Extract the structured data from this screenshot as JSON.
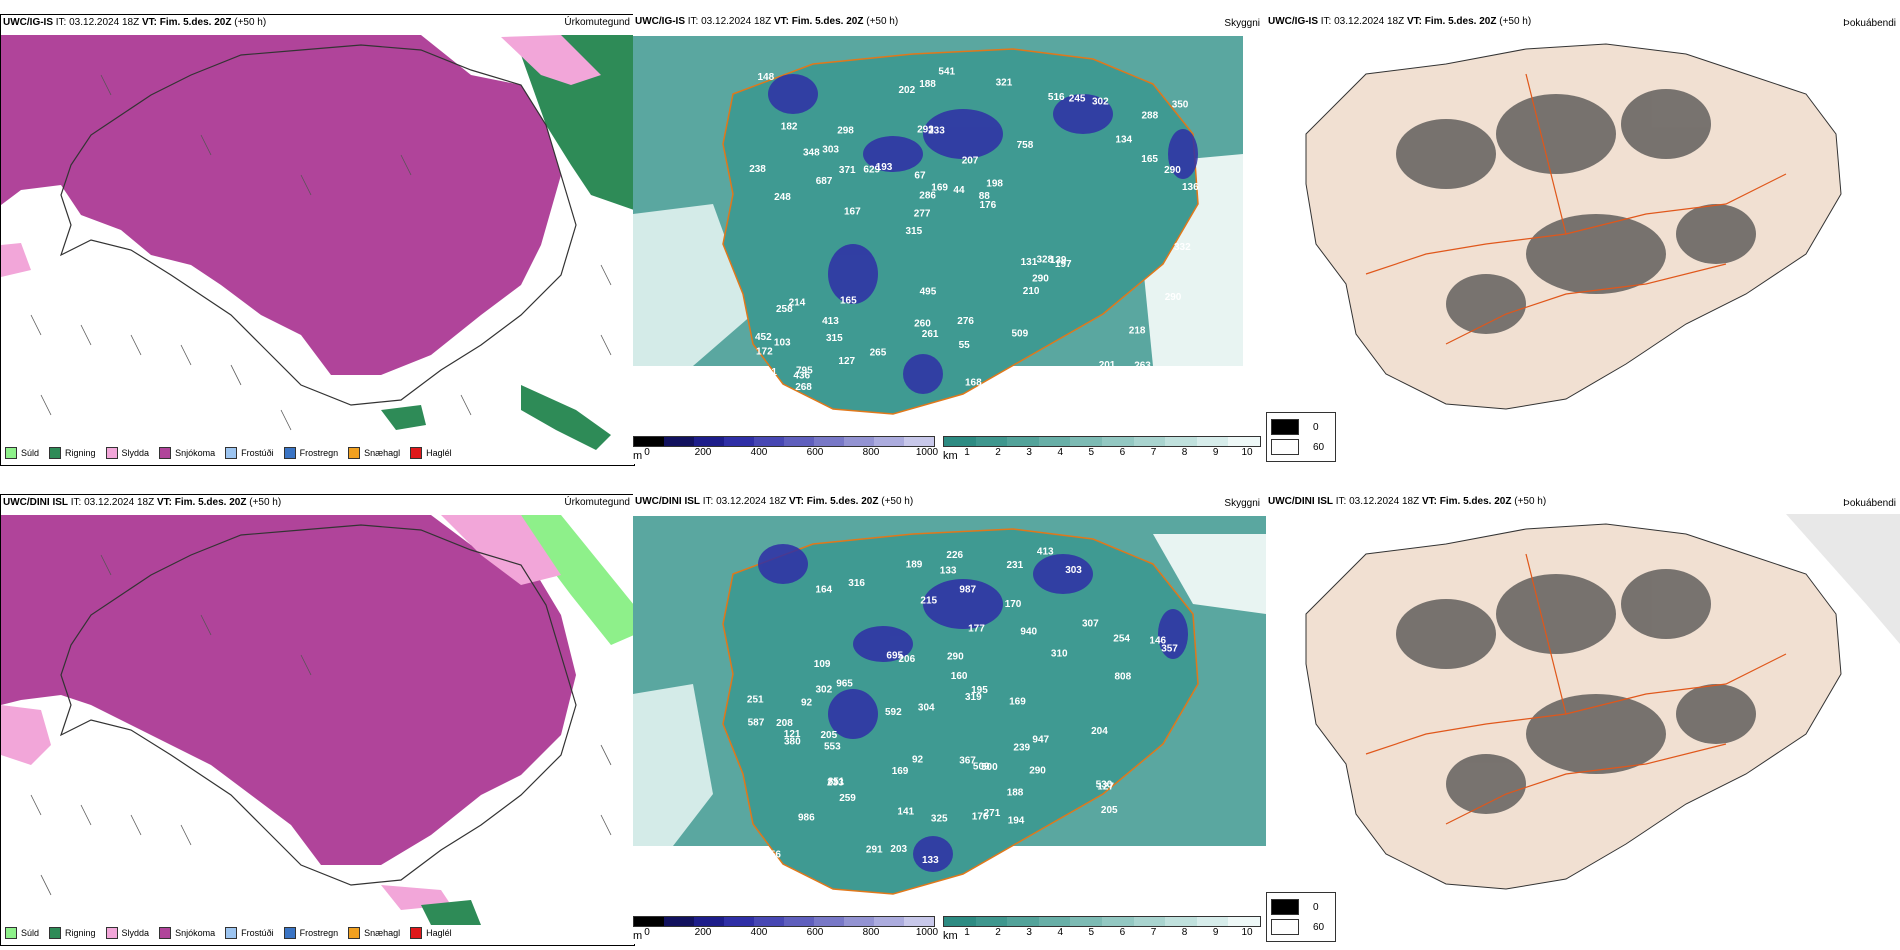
{
  "rows": [
    {
      "left": {
        "model": "UWC/IG-IS",
        "it_label": "IT:",
        "it_value": "03.12.2024 18Z",
        "vt_label": "VT:",
        "vt_value": "Fim. 5.des. 20Z",
        "lead": "(+50 h)",
        "product": "Úrkomutegund"
      },
      "middle": {
        "model": "UWC/IG-IS",
        "it_label": "IT:",
        "it_value": "03.12.2024 18Z",
        "vt_label": "VT:",
        "vt_value": "Fim. 5.des. 20Z",
        "lead": "(+50 h)",
        "product": "Skyggni",
        "labels": [
          "263",
          "248",
          "288",
          "315",
          "758",
          "795",
          "293",
          "207",
          "214",
          "193",
          "172",
          "315",
          "233",
          "198",
          "197",
          "182",
          "188",
          "136",
          "131",
          "165",
          "277",
          "260",
          "286",
          "298",
          "516",
          "165",
          "201",
          "218",
          "139",
          "168",
          "629",
          "687",
          "210",
          "127",
          "290",
          "88",
          "101",
          "261",
          "176",
          "258",
          "134",
          "350",
          "290",
          "509",
          "413",
          "268",
          "192",
          "276",
          "302",
          "541",
          "167",
          "238",
          "303",
          "245",
          "436",
          "321",
          "202",
          "169",
          "290",
          "495",
          "265",
          "328",
          "371",
          "452",
          "148",
          "348",
          "332",
          "67",
          "55",
          "44",
          "103"
        ]
      },
      "right": {
        "model": "UWC/IG-IS",
        "it_label": "IT:",
        "it_value": "03.12.2024 18Z",
        "vt_label": "VT:",
        "vt_value": "Fim. 5.des. 20Z",
        "lead": "(+50 h)",
        "product": "Þokuábendi"
      }
    },
    {
      "left": {
        "model": "UWC/DINI ISL",
        "it_label": "IT:",
        "it_value": "03.12.2024 18Z",
        "vt_label": "VT:",
        "vt_value": "Fim. 5.des. 20Z",
        "lead": "(+50 h)",
        "product": "Úrkomutegund"
      },
      "middle": {
        "model": "UWC/DINI ISL",
        "it_label": "IT:",
        "it_value": "03.12.2024 18Z",
        "vt_label": "VT:",
        "vt_value": "Fim. 5.des. 20Z",
        "lead": "(+50 h)",
        "product": "Skyggni",
        "labels": [
          "986",
          "303",
          "316",
          "307",
          "509",
          "965",
          "553",
          "851",
          "254",
          "310",
          "208",
          "226",
          "290",
          "319",
          "133",
          "189",
          "205",
          "251",
          "233",
          "203",
          "194",
          "133",
          "215",
          "195",
          "160",
          "141",
          "121",
          "231",
          "177",
          "947",
          "109",
          "259",
          "271",
          "367",
          "127",
          "380",
          "146",
          "169",
          "940",
          "204",
          "357",
          "987",
          "325",
          "205",
          "587",
          "302",
          "239",
          "176",
          "169",
          "188",
          "206",
          "291",
          "290",
          "808",
          "592",
          "500",
          "695",
          "530",
          "164",
          "92",
          "156",
          "413",
          "170",
          "304",
          "92"
        ]
      },
      "right": {
        "model": "UWC/DINI ISL",
        "it_label": "IT:",
        "it_value": "03.12.2024 18Z",
        "vt_label": "VT:",
        "vt_value": "Fim. 5.des. 20Z",
        "lead": "(+50 h)",
        "product": "Þokuábendi"
      }
    }
  ],
  "precip_legend": [
    {
      "label": "Súld",
      "color": "#8ef08a"
    },
    {
      "label": "Rigning",
      "color": "#2e8b57"
    },
    {
      "label": "Slydda",
      "color": "#f2a6d9"
    },
    {
      "label": "Snjókoma",
      "color": "#b0449a"
    },
    {
      "label": "Frostúði",
      "color": "#9cc4f0"
    },
    {
      "label": "Frostregn",
      "color": "#3a74c4"
    },
    {
      "label": "Snæhagl",
      "color": "#f0a020"
    },
    {
      "label": "Haglél",
      "color": "#e0191b"
    }
  ],
  "elev_colorbar": {
    "unit": "m",
    "ticks": [
      "0",
      "200",
      "400",
      "600",
      "800",
      "1000"
    ],
    "colors": [
      "#000000",
      "#11115e",
      "#1d1d8a",
      "#2f2fa6",
      "#4747b3",
      "#5f5fbd",
      "#7878c7",
      "#9393d2",
      "#acacde",
      "#c8c8ea"
    ]
  },
  "vis_colorbar": {
    "unit": "km",
    "ticks": [
      "1",
      "2",
      "3",
      "4",
      "5",
      "6",
      "7",
      "8",
      "9",
      "10"
    ],
    "colors": [
      "#2d8b82",
      "#3f978e",
      "#53a39a",
      "#68afa7",
      "#7dbbb4",
      "#93c8c2",
      "#a9d4cf",
      "#c0e1dd",
      "#d7edeb",
      "#eef8f7"
    ]
  },
  "fog_legend": [
    {
      "label": "0",
      "color": "#000000"
    },
    {
      "label": "60",
      "color": "#ffffff"
    }
  ],
  "colors": {
    "snow": "#b0449a",
    "rain": "#2e8b57",
    "sleet": "#f2a6d9",
    "drizzle": "#8ef08a",
    "vis_sea": "#5aa7a0",
    "vis_land": "#3f9a92",
    "fog_land": "#f1e0d2",
    "roads": "#e0571b"
  }
}
